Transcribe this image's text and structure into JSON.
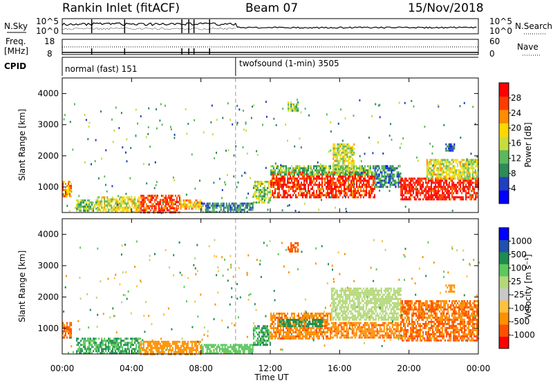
{
  "header": {
    "station": "Rankin Inlet (fitACF)",
    "beam": "Beam 07",
    "date": "15/Nov/2018"
  },
  "strip_labels": {
    "nsky": "N.Sky",
    "freq_line1": "Freq.",
    "freq_line2": "[MHz]",
    "cpid": "CPID",
    "nsearch": "N.Search",
    "nave": "Nave",
    "nsky_tick_top": "10^5",
    "nsky_tick_bottom": "10^0",
    "freq_tick_top": "18",
    "freq_tick_bottom": "8",
    "nave_tick_top": "60",
    "nave_tick_bottom": "0",
    "nsearch_tick_top": "10^5",
    "nsearch_tick_bottom": "10^0"
  },
  "cpid_modes": [
    {
      "label": "normal (fast) 151",
      "start_hour": 0,
      "end_hour": 10
    },
    {
      "label": "twofsound (1-min) 3505",
      "start_hour": 10,
      "end_hour": 24
    }
  ],
  "colors": {
    "power_scale": [
      "#0000ff",
      "#2040c0",
      "#2e8b57",
      "#5cb85c",
      "#c8dc3c",
      "#ffd700",
      "#ff8c00",
      "#ff3c00",
      "#ff0000"
    ],
    "velocity_scale": [
      "#ff0000",
      "#ff5000",
      "#ff9000",
      "#ffc040",
      "#c8c8c8",
      "#b4d77a",
      "#5cc85c",
      "#1e8c50",
      "#2050b0",
      "#0000ff"
    ]
  },
  "chart_data": [
    {
      "type": "heatmap",
      "name": "power",
      "xlabel": "Time UT",
      "ylabel": "Slant Range [km]",
      "x_ticks": [
        "00:00",
        "04:00",
        "08:00",
        "12:00",
        "16:00",
        "20:00",
        "00:00"
      ],
      "y_ticks": [
        "1000",
        "2000",
        "3000",
        "4000"
      ],
      "xlim": [
        0,
        24
      ],
      "ylim": [
        180,
        4500
      ],
      "colorbar_label": "Power [dB]",
      "colorbar_ticks": [
        "4",
        "8",
        "12",
        "16",
        "20",
        "24",
        "28"
      ],
      "colorbar_range": [
        0,
        30
      ],
      "echo_regions": [
        {
          "hour_start": 0,
          "hour_end": 0.5,
          "range_start": 700,
          "range_end": 1200,
          "value": 22
        },
        {
          "hour_start": 0.8,
          "hour_end": 2.0,
          "range_start": 250,
          "range_end": 600,
          "value": 12
        },
        {
          "hour_start": 2.0,
          "hour_end": 4.5,
          "range_start": 200,
          "range_end": 700,
          "value": 16
        },
        {
          "hour_start": 4.5,
          "hour_end": 6.8,
          "range_start": 200,
          "range_end": 750,
          "value": 26
        },
        {
          "hour_start": 6.8,
          "hour_end": 8.0,
          "range_start": 300,
          "range_end": 600,
          "value": 20
        },
        {
          "hour_start": 8.0,
          "hour_end": 11.0,
          "range_start": 200,
          "range_end": 500,
          "value": 8
        },
        {
          "hour_start": 11.0,
          "hour_end": 12.0,
          "range_start": 500,
          "range_end": 1200,
          "value": 14
        },
        {
          "hour_start": 12.0,
          "hour_end": 18.0,
          "range_start": 700,
          "range_end": 1500,
          "value": 26
        },
        {
          "hour_start": 12.0,
          "hour_end": 18.0,
          "range_start": 1400,
          "range_end": 1700,
          "value": 12
        },
        {
          "hour_start": 15.6,
          "hour_end": 16.8,
          "range_start": 1500,
          "range_end": 2400,
          "value": 16
        },
        {
          "hour_start": 18.0,
          "hour_end": 19.5,
          "range_start": 1000,
          "range_end": 1700,
          "value": 8
        },
        {
          "hour_start": 19.5,
          "hour_end": 24.0,
          "range_start": 600,
          "range_end": 1300,
          "value": 28
        },
        {
          "hour_start": 21.0,
          "hour_end": 24.0,
          "range_start": 1300,
          "range_end": 1900,
          "value": 16
        },
        {
          "hour_start": 13.0,
          "hour_end": 13.6,
          "range_start": 3450,
          "range_end": 3750,
          "value": 14
        },
        {
          "hour_start": 22.1,
          "hour_end": 22.6,
          "range_start": 2200,
          "range_end": 2400,
          "value": 6
        }
      ]
    },
    {
      "type": "heatmap",
      "name": "velocity",
      "xlabel": "Time UT",
      "ylabel": "Slant Range [km]",
      "x_ticks": [
        "00:00",
        "04:00",
        "08:00",
        "12:00",
        "16:00",
        "20:00",
        "00:00"
      ],
      "y_ticks": [
        "1000",
        "2000",
        "3000",
        "4000"
      ],
      "xlim": [
        0,
        24
      ],
      "ylim": [
        180,
        4500
      ],
      "colorbar_label": "Velocity [m s⁻¹]",
      "colorbar_ticks": [
        "-1000",
        "-500",
        "-100",
        "-25",
        "25",
        "100",
        "500",
        "1000"
      ],
      "echo_regions": [
        {
          "hour_start": 0,
          "hour_end": 0.5,
          "range_start": 700,
          "range_end": 1200,
          "value": -500
        },
        {
          "hour_start": 0.8,
          "hour_end": 4.5,
          "range_start": 200,
          "range_end": 700,
          "value": 100
        },
        {
          "hour_start": 4.5,
          "hour_end": 8.0,
          "range_start": 200,
          "range_end": 600,
          "value": -300
        },
        {
          "hour_start": 8.0,
          "hour_end": 11.0,
          "range_start": 200,
          "range_end": 500,
          "value": 50
        },
        {
          "hour_start": 11.0,
          "hour_end": 12.0,
          "range_start": 500,
          "range_end": 1100,
          "value": 100
        },
        {
          "hour_start": 12.0,
          "hour_end": 15.5,
          "range_start": 700,
          "range_end": 1500,
          "value": -400
        },
        {
          "hour_start": 12.5,
          "hour_end": 15.0,
          "range_start": 1100,
          "range_end": 1300,
          "value": 150
        },
        {
          "hour_start": 15.5,
          "hour_end": 19.5,
          "range_start": 1300,
          "range_end": 2300,
          "value": 0
        },
        {
          "hour_start": 15.5,
          "hour_end": 19.5,
          "range_start": 700,
          "range_end": 1200,
          "value": -400
        },
        {
          "hour_start": 19.5,
          "hour_end": 24.0,
          "range_start": 600,
          "range_end": 1900,
          "value": -500
        },
        {
          "hour_start": 13.0,
          "hour_end": 13.6,
          "range_start": 3450,
          "range_end": 3750,
          "value": -700
        },
        {
          "hour_start": 22.1,
          "hour_end": 22.6,
          "range_start": 2200,
          "range_end": 2400,
          "value": -200
        }
      ]
    }
  ]
}
